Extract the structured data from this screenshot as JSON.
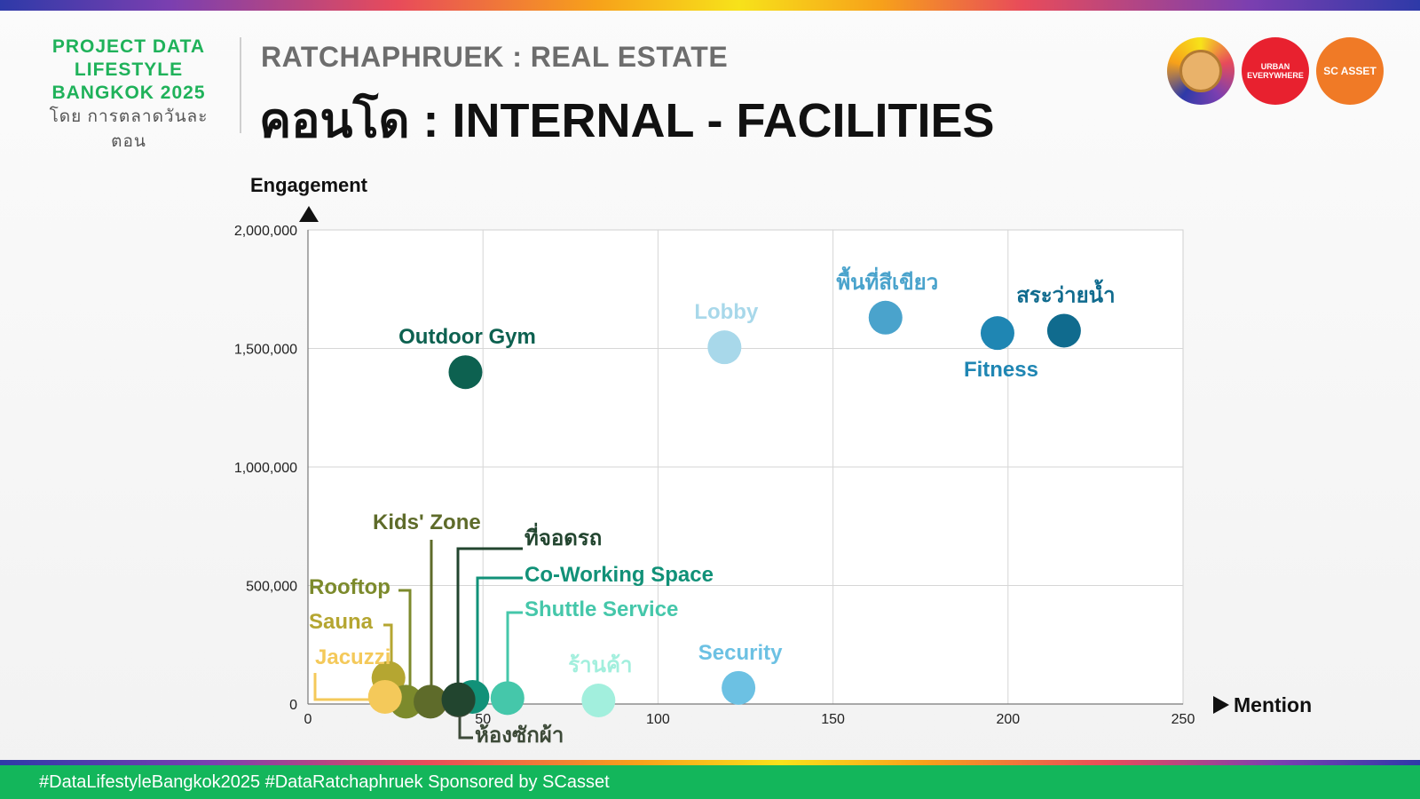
{
  "brand": {
    "line1": "PROJECT DATA",
    "line2": "LIFESTYLE",
    "line3": "BANGKOK 2025",
    "sub": "โดย การตลาดวันละตอน"
  },
  "header": {
    "supertitle": "RATCHAPHRUEK : REAL ESTATE",
    "title": "คอนโด : INTERNAL - FACILITIES"
  },
  "logos": {
    "urban_line1": "URBAN",
    "urban_line2": "EVERYWHERE",
    "sc": "SC ASSET"
  },
  "footer": {
    "text": "#DataLifestyleBangkok2025 #DataRatchaphruek Sponsored by SCasset"
  },
  "chart_data": {
    "type": "scatter",
    "xlabel": "Mention",
    "ylabel": "Engagement",
    "xlim": [
      0,
      250
    ],
    "ylim": [
      0,
      2000000
    ],
    "xticks": [
      0,
      50,
      100,
      150,
      200,
      250
    ],
    "yticks": [
      0,
      500000,
      1000000,
      1500000,
      2000000
    ],
    "xtick_labels": [
      "0",
      "50",
      "100",
      "150",
      "200",
      "250"
    ],
    "ytick_labels": [
      "0",
      "500,000",
      "1,000,000",
      "1,500,000",
      "2,000,000"
    ],
    "grid": true,
    "points": [
      {
        "label": "Outdoor Gym",
        "x": 45,
        "y": 1400000,
        "color": "#0d6150",
        "label_pos": "above"
      },
      {
        "label": "Lobby",
        "x": 119,
        "y": 1505000,
        "color": "#a8d8ea",
        "label_pos": "above"
      },
      {
        "label": "พื้นที่สีเขียว",
        "x": 165,
        "y": 1630000,
        "color": "#4aa3cc",
        "label_pos": "above"
      },
      {
        "label": "Fitness",
        "x": 197,
        "y": 1565000,
        "color": "#1f86b3",
        "label_pos": "below"
      },
      {
        "label": "สระว่ายน้ำ",
        "x": 216,
        "y": 1575000,
        "color": "#106b8e",
        "label_pos": "above"
      },
      {
        "label": "Security",
        "x": 123,
        "y": 68000,
        "color": "#6cc1e3",
        "label_pos": "above"
      },
      {
        "label": "ร้านค้า",
        "x": 83,
        "y": 15000,
        "color": "#a2efdd",
        "label_pos": "above"
      },
      {
        "label": "Shuttle Service",
        "x": 57,
        "y": 25000,
        "color": "#45c7aa",
        "label_pos": "callout"
      },
      {
        "label": "Co-Working Space",
        "x": 47,
        "y": 30000,
        "color": "#119178",
        "label_pos": "callout"
      },
      {
        "label": "ที่จอดรถ",
        "x": 43,
        "y": 20000,
        "color": "#22452f",
        "label_pos": "callout"
      },
      {
        "label": "ห้องซักผ้า",
        "x": 43,
        "y": 15000,
        "color": "#3d4a38",
        "label_pos": "callout-below"
      },
      {
        "label": "Kids' Zone",
        "x": 35,
        "y": 10000,
        "color": "#5e6b2a",
        "label_pos": "callout"
      },
      {
        "label": "Rooftop",
        "x": 28,
        "y": 10000,
        "color": "#7c8a2c",
        "label_pos": "callout"
      },
      {
        "label": "Sauna",
        "x": 23,
        "y": 110000,
        "color": "#b5a631",
        "label_pos": "callout"
      },
      {
        "label": "Jacuzzi",
        "x": 22,
        "y": 30000,
        "color": "#f4c95a",
        "label_pos": "callout"
      }
    ]
  }
}
